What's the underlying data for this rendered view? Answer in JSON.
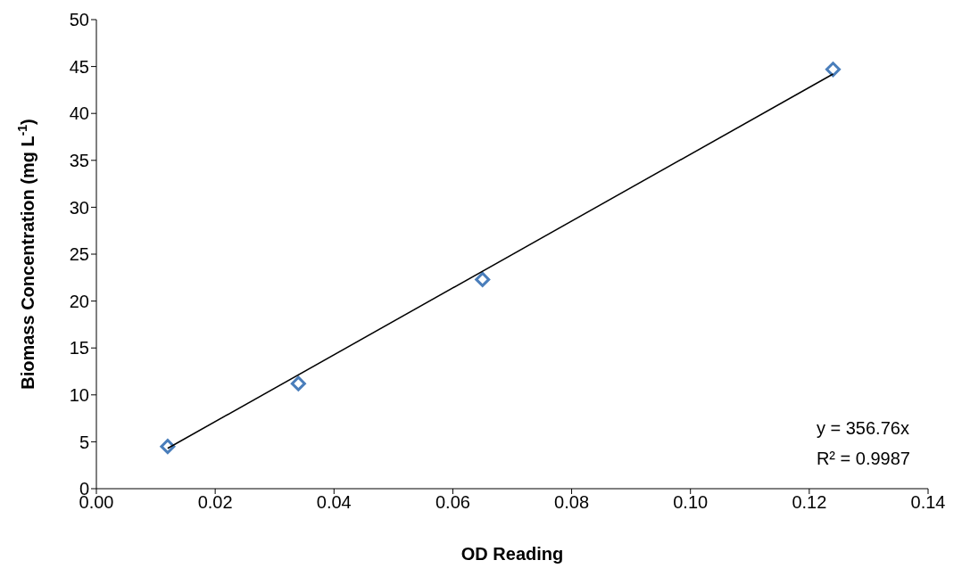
{
  "chart_data": {
    "type": "scatter",
    "xlabel": "OD Reading",
    "ylabel": "Biomass Concentration (mg L$^{-1}$)",
    "xlim": [
      0,
      0.14
    ],
    "xticks": [
      {
        "value": 0,
        "label": "0.00"
      },
      {
        "value": 0.02,
        "label": "0.02"
      },
      {
        "value": 0.04,
        "label": "0.04"
      },
      {
        "value": 0.06,
        "label": "0.06"
      },
      {
        "value": 0.08,
        "label": "0.08"
      },
      {
        "value": 0.1,
        "label": "0.10"
      },
      {
        "value": 0.12,
        "label": "0.12"
      },
      {
        "value": 0.14,
        "label": "0.14"
      }
    ],
    "ylim": [
      0,
      50
    ],
    "yticks": [
      0,
      5,
      10,
      15,
      20,
      25,
      30,
      35,
      40,
      45,
      50
    ],
    "grid": false,
    "series": [
      {
        "color": "#4a7ebb",
        "marker": "diamond",
        "x": [
          0.012,
          0.034,
          0.065,
          0.124
        ],
        "values": [
          4.5,
          11.2,
          22.3,
          44.7
        ]
      },
      {
        "type": "line",
        "color": "#000000",
        "marker": "none",
        "line_style": "solid",
        "x": [
          0.012,
          0.124
        ],
        "values": [
          4.3,
          44.2
        ]
      }
    ],
    "annotations": [
      "y = 356.76x",
      "R² = 0.9987"
    ]
  }
}
